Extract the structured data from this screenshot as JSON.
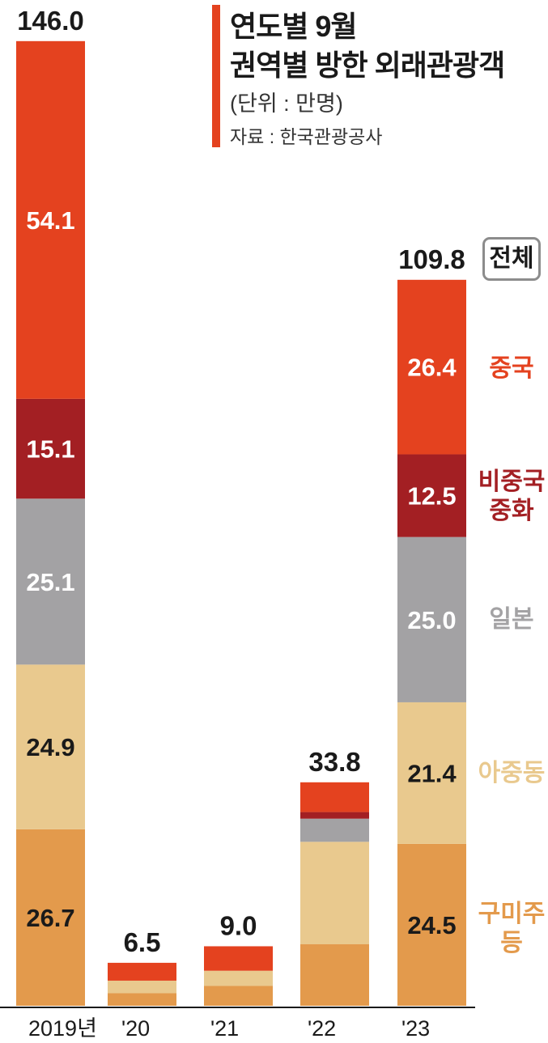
{
  "title": {
    "line1": "연도별 9월",
    "line2": "권역별 방한 외래관광객"
  },
  "unit": "(단위 : 만명)",
  "source": "자료 : 한국관광공사",
  "colors": {
    "china": "#e4421f",
    "greater_china": "#a31f23",
    "japan": "#a3a2a4",
    "asia_middle_east": "#e9c98e",
    "americas_europe": "#e39a4c",
    "title_bar": "#e4421f",
    "total_box": "#8c8c8c"
  },
  "legend": {
    "total": "전체",
    "china": "중국",
    "greater_china": [
      "비중국",
      "중화"
    ],
    "japan": "일본",
    "asia_middle_east": "아중동",
    "americas_europe": [
      "구미주",
      "등"
    ]
  },
  "chart_data": {
    "type": "bar",
    "stacked": true,
    "categories": [
      "2019년",
      "'20",
      "'21",
      "'22",
      "'23"
    ],
    "totals": [
      146.0,
      6.5,
      9.0,
      33.8,
      109.8
    ],
    "series": [
      {
        "name": "구미주 등",
        "values": [
          26.7,
          1.9,
          3.0,
          9.3,
          24.5
        ]
      },
      {
        "name": "아중동",
        "values": [
          24.9,
          1.9,
          2.3,
          15.5,
          21.4
        ]
      },
      {
        "name": "일본",
        "values": [
          25.1,
          0,
          0,
          3.5,
          25.0
        ]
      },
      {
        "name": "비중국 중화",
        "values": [
          15.1,
          0,
          0,
          1.0,
          12.5
        ]
      },
      {
        "name": "중국",
        "values": [
          54.1,
          2.7,
          3.7,
          4.5,
          26.4
        ]
      }
    ],
    "value_labels": {
      "2019년": [
        "26.7",
        "24.9",
        "25.1",
        "15.1",
        "54.1"
      ],
      "'23": [
        "24.5",
        "21.4",
        "25.0",
        "12.5",
        "26.4"
      ]
    }
  }
}
